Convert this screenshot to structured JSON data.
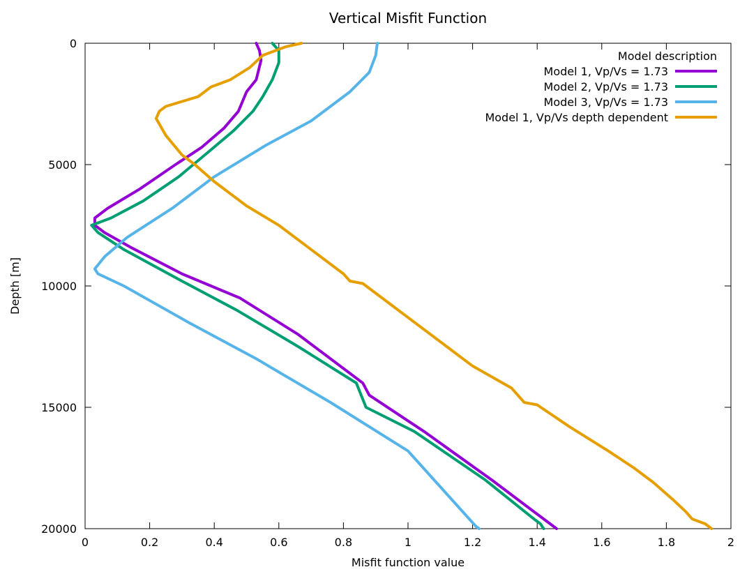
{
  "chart_data": {
    "type": "line",
    "title": "Vertical Misfit Function",
    "xlabel": "Misfit function value",
    "ylabel": "Depth [m]",
    "xlim": [
      0,
      2
    ],
    "ylim": [
      20000,
      0
    ],
    "y_inverted": true,
    "xticks": [
      0,
      0.2,
      0.4,
      0.6,
      0.8,
      1,
      1.2,
      1.4,
      1.6,
      1.8,
      2
    ],
    "xtick_labels": [
      "0",
      "0.2",
      "0.4",
      "0.6",
      "0.8",
      "1",
      "1.2",
      "1.4",
      "1.6",
      "1.8",
      "2"
    ],
    "yticks": [
      0,
      5000,
      10000,
      15000,
      20000
    ],
    "ytick_labels": [
      "0",
      "5000",
      "10000",
      "15000",
      "20000"
    ],
    "grid": false,
    "legend_title": "Model description",
    "legend_position": "top-right",
    "series": [
      {
        "name": "Model 1, Vp/Vs = 1.73",
        "color": "#9400d3",
        "points": [
          [
            0.53,
            0
          ],
          [
            0.54,
            300
          ],
          [
            0.545,
            700
          ],
          [
            0.53,
            1500
          ],
          [
            0.5,
            2000
          ],
          [
            0.475,
            2800
          ],
          [
            0.43,
            3500
          ],
          [
            0.36,
            4300
          ],
          [
            0.28,
            5000
          ],
          [
            0.17,
            6000
          ],
          [
            0.07,
            6800
          ],
          [
            0.03,
            7200
          ],
          [
            0.03,
            7500
          ],
          [
            0.06,
            7800
          ],
          [
            0.14,
            8400
          ],
          [
            0.3,
            9500
          ],
          [
            0.48,
            10500
          ],
          [
            0.66,
            12000
          ],
          [
            0.86,
            14000
          ],
          [
            0.88,
            14500
          ],
          [
            1.05,
            16000
          ],
          [
            1.26,
            18000
          ],
          [
            1.42,
            19600
          ],
          [
            1.44,
            19800
          ],
          [
            1.46,
            20000
          ]
        ]
      },
      {
        "name": "Model 2, Vp/Vs = 1.73",
        "color": "#009e73",
        "points": [
          [
            0.58,
            0
          ],
          [
            0.6,
            300
          ],
          [
            0.6,
            800
          ],
          [
            0.58,
            1500
          ],
          [
            0.55,
            2200
          ],
          [
            0.52,
            2800
          ],
          [
            0.46,
            3600
          ],
          [
            0.38,
            4500
          ],
          [
            0.29,
            5500
          ],
          [
            0.18,
            6500
          ],
          [
            0.08,
            7200
          ],
          [
            0.02,
            7500
          ],
          [
            0.04,
            7800
          ],
          [
            0.12,
            8500
          ],
          [
            0.3,
            9800
          ],
          [
            0.47,
            11000
          ],
          [
            0.66,
            12500
          ],
          [
            0.84,
            14000
          ],
          [
            0.87,
            15000
          ],
          [
            1.02,
            16000
          ],
          [
            1.24,
            18000
          ],
          [
            1.39,
            19600
          ],
          [
            1.41,
            19800
          ],
          [
            1.42,
            20000
          ]
        ]
      },
      {
        "name": "Model 3, Vp/Vs = 1.73",
        "color": "#56b4e9",
        "points": [
          [
            0.905,
            0
          ],
          [
            0.9,
            500
          ],
          [
            0.88,
            1200
          ],
          [
            0.82,
            2000
          ],
          [
            0.7,
            3200
          ],
          [
            0.56,
            4200
          ],
          [
            0.4,
            5500
          ],
          [
            0.27,
            6800
          ],
          [
            0.13,
            8000
          ],
          [
            0.06,
            8800
          ],
          [
            0.03,
            9300
          ],
          [
            0.04,
            9500
          ],
          [
            0.12,
            10000
          ],
          [
            0.32,
            11500
          ],
          [
            0.53,
            13000
          ],
          [
            0.76,
            14800
          ],
          [
            1.0,
            16800
          ],
          [
            1.21,
            19900
          ],
          [
            1.22,
            20000
          ]
        ]
      },
      {
        "name": "Model 1, Vp/Vs depth dependent",
        "color": "#e69f00",
        "points": [
          [
            0.67,
            0
          ],
          [
            0.62,
            150
          ],
          [
            0.55,
            500
          ],
          [
            0.51,
            1000
          ],
          [
            0.45,
            1500
          ],
          [
            0.39,
            1800
          ],
          [
            0.35,
            2200
          ],
          [
            0.3,
            2400
          ],
          [
            0.25,
            2600
          ],
          [
            0.23,
            2800
          ],
          [
            0.22,
            3100
          ],
          [
            0.25,
            3800
          ],
          [
            0.3,
            4600
          ],
          [
            0.34,
            5000
          ],
          [
            0.4,
            5700
          ],
          [
            0.5,
            6700
          ],
          [
            0.6,
            7500
          ],
          [
            0.68,
            8300
          ],
          [
            0.8,
            9500
          ],
          [
            0.82,
            9800
          ],
          [
            0.86,
            9900
          ],
          [
            0.92,
            10500
          ],
          [
            1.02,
            11500
          ],
          [
            1.12,
            12500
          ],
          [
            1.2,
            13300
          ],
          [
            1.32,
            14200
          ],
          [
            1.36,
            14800
          ],
          [
            1.4,
            14900
          ],
          [
            1.5,
            15800
          ],
          [
            1.62,
            16800
          ],
          [
            1.7,
            17500
          ],
          [
            1.76,
            18100
          ],
          [
            1.82,
            18800
          ],
          [
            1.86,
            19300
          ],
          [
            1.88,
            19600
          ],
          [
            1.92,
            19800
          ],
          [
            1.94,
            20000
          ]
        ]
      }
    ]
  }
}
